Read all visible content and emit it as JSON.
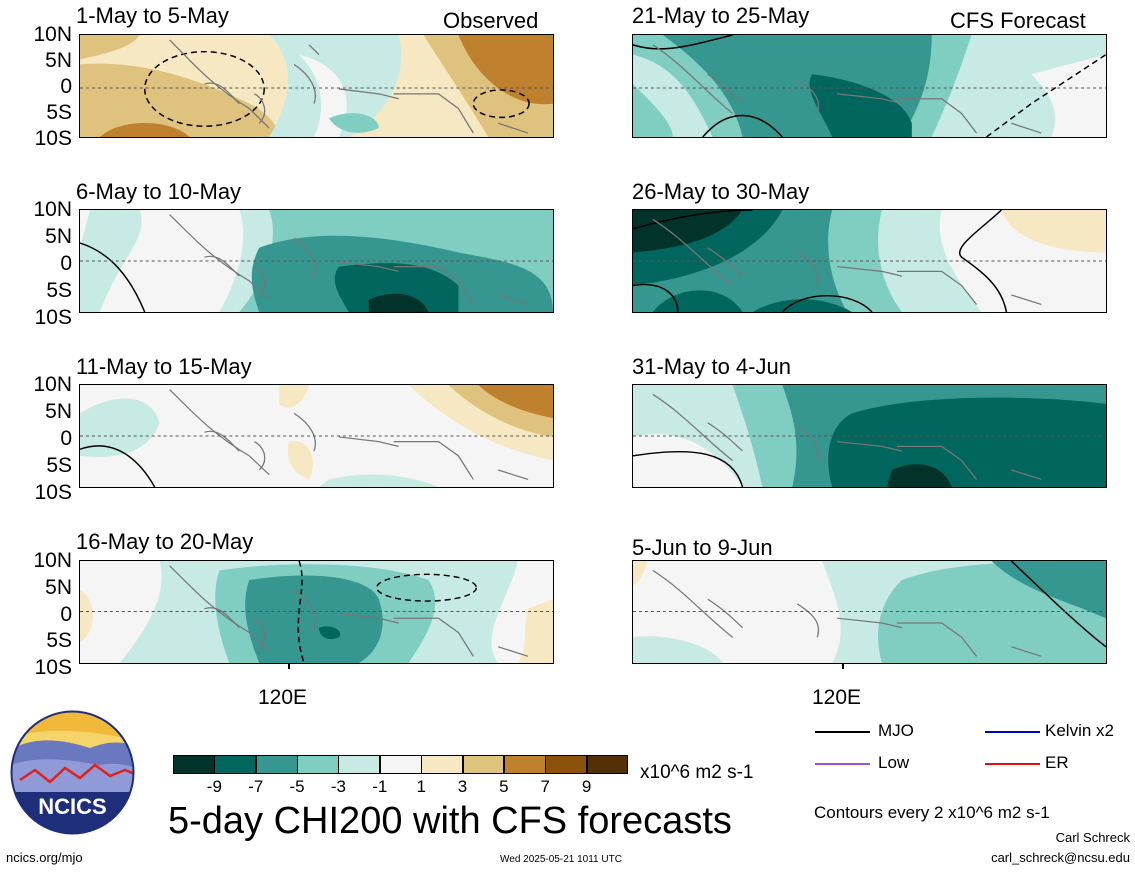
{
  "lat_labels": [
    "10N",
    "5N",
    "0",
    "5S",
    "10S"
  ],
  "lon_label": "120E",
  "panels": [
    {
      "title": "1-May to 5-May",
      "tag": "Observed"
    },
    {
      "title": "21-May to 25-May",
      "tag": "CFS Forecast"
    },
    {
      "title": "6-May to 10-May",
      "tag": ""
    },
    {
      "title": "26-May to 30-May",
      "tag": ""
    },
    {
      "title": "11-May to 15-May",
      "tag": ""
    },
    {
      "title": "31-May to 4-Jun",
      "tag": ""
    },
    {
      "title": "16-May to 20-May",
      "tag": ""
    },
    {
      "title": "5-Jun to 9-Jun",
      "tag": ""
    }
  ],
  "colorbar": {
    "labels": [
      "-9",
      "-7",
      "-5",
      "-3",
      "-1",
      "1",
      "3",
      "5",
      "7",
      "9"
    ],
    "colors": [
      "#01332a",
      "#01665e",
      "#35978f",
      "#80cdc1",
      "#c7eae5",
      "#f5f5f5",
      "#f6e8c3",
      "#dfc27d",
      "#bf812d",
      "#8c510a",
      "#543005"
    ],
    "units": "x10^6 m2 s-1"
  },
  "legend": {
    "mjo": "MJO",
    "kelvin": "Kelvin x2",
    "low": "Low",
    "er": "ER",
    "contour_note": "Contours every 2 x10^6 m2 s-1"
  },
  "legend_colors": {
    "mjo": "#000000",
    "kelvin": "#0000cc",
    "low": "#9b4fd8",
    "er": "#e01010"
  },
  "main_title": "5-day CHI200 with CFS forecasts",
  "logo_text": "NCICS",
  "footer": {
    "url": "ncics.org/mjo",
    "timestamp": "Wed 2025-05-21 1011 UTC",
    "author": "Carl Schreck",
    "email": "carl_schreck@ncsu.edu"
  }
}
